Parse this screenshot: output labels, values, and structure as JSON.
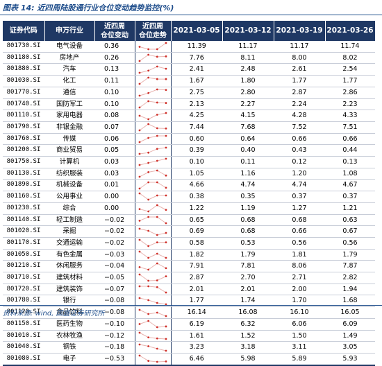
{
  "title": "图表 14: 近四周陆股通行业仓位变动趋势监控(%)",
  "source": "资料来源: wind, 国盛证券研究所",
  "colors": {
    "header_bg": "#1F3864",
    "accent": "#1F4E8C",
    "spark_line": "#E8B4B0",
    "spark_dot": "#D0302A"
  },
  "headers": {
    "code": "证券代码",
    "industry": "申万行业",
    "change": "近四周\n仓位变动",
    "trend": "近四周\n仓位走势",
    "dates": [
      "2021-03-05",
      "2021-03-12",
      "2021-03-19",
      "2021-03-26"
    ]
  },
  "rows": [
    {
      "code": "801730.SI",
      "industry": "电气设备",
      "change": "0.36",
      "values": [
        "11.39",
        "11.17",
        "11.17",
        "11.74"
      ],
      "trend": [
        11.39,
        11.17,
        11.17,
        11.74
      ]
    },
    {
      "code": "801180.SI",
      "industry": "房地产",
      "change": "0.26",
      "values": [
        "7.76",
        "8.11",
        "8.00",
        "8.02"
      ],
      "trend": [
        7.76,
        8.11,
        8.0,
        8.02
      ]
    },
    {
      "code": "801880.SI",
      "industry": "汽车",
      "change": "0.13",
      "values": [
        "2.41",
        "2.48",
        "2.61",
        "2.54"
      ],
      "trend": [
        2.41,
        2.48,
        2.61,
        2.54
      ]
    },
    {
      "code": "801030.SI",
      "industry": "化工",
      "change": "0.11",
      "values": [
        "1.67",
        "1.80",
        "1.77",
        "1.77"
      ],
      "trend": [
        1.67,
        1.8,
        1.77,
        1.77
      ]
    },
    {
      "code": "801770.SI",
      "industry": "通信",
      "change": "0.10",
      "values": [
        "2.75",
        "2.80",
        "2.87",
        "2.86"
      ],
      "trend": [
        2.75,
        2.8,
        2.87,
        2.86
      ]
    },
    {
      "code": "801740.SI",
      "industry": "国防军工",
      "change": "0.10",
      "values": [
        "2.13",
        "2.27",
        "2.24",
        "2.23"
      ],
      "trend": [
        2.13,
        2.27,
        2.24,
        2.23
      ]
    },
    {
      "code": "801110.SI",
      "industry": "家用电器",
      "change": "0.08",
      "values": [
        "4.25",
        "4.15",
        "4.28",
        "4.33"
      ],
      "trend": [
        4.25,
        4.15,
        4.28,
        4.33
      ]
    },
    {
      "code": "801790.SI",
      "industry": "非银金融",
      "change": "0.07",
      "values": [
        "7.44",
        "7.68",
        "7.52",
        "7.51"
      ],
      "trend": [
        7.44,
        7.68,
        7.52,
        7.51
      ]
    },
    {
      "code": "801760.SI",
      "industry": "传媒",
      "change": "0.06",
      "values": [
        "0.60",
        "0.64",
        "0.66",
        "0.66"
      ],
      "trend": [
        0.6,
        0.64,
        0.66,
        0.66
      ]
    },
    {
      "code": "801200.SI",
      "industry": "商业贸易",
      "change": "0.05",
      "values": [
        "0.39",
        "0.40",
        "0.43",
        "0.44"
      ],
      "trend": [
        0.39,
        0.4,
        0.43,
        0.44
      ]
    },
    {
      "code": "801750.SI",
      "industry": "计算机",
      "change": "0.03",
      "values": [
        "0.10",
        "0.11",
        "0.12",
        "0.13"
      ],
      "trend": [
        0.1,
        0.11,
        0.12,
        0.13
      ]
    },
    {
      "code": "801130.SI",
      "industry": "纺织服装",
      "change": "0.03",
      "values": [
        "1.05",
        "1.16",
        "1.20",
        "1.08"
      ],
      "trend": [
        1.05,
        1.16,
        1.2,
        1.08
      ]
    },
    {
      "code": "801890.SI",
      "industry": "机械设备",
      "change": "0.01",
      "values": [
        "4.66",
        "4.74",
        "4.74",
        "4.67"
      ],
      "trend": [
        4.66,
        4.74,
        4.74,
        4.67
      ]
    },
    {
      "code": "801160.SI",
      "industry": "公用事业",
      "change": "0.00",
      "values": [
        "0.38",
        "0.35",
        "0.37",
        "0.37"
      ],
      "trend": [
        0.38,
        0.35,
        0.37,
        0.37
      ]
    },
    {
      "code": "801230.SI",
      "industry": "综合",
      "change": "0.00",
      "values": [
        "1.22",
        "1.19",
        "1.27",
        "1.21"
      ],
      "trend": [
        1.22,
        1.19,
        1.27,
        1.21
      ]
    },
    {
      "code": "801140.SI",
      "industry": "轻工制造",
      "change": "−0.02",
      "values": [
        "0.65",
        "0.68",
        "0.68",
        "0.63"
      ],
      "trend": [
        0.65,
        0.68,
        0.68,
        0.63
      ]
    },
    {
      "code": "801020.SI",
      "industry": "采掘",
      "change": "−0.02",
      "values": [
        "0.69",
        "0.68",
        "0.66",
        "0.67"
      ],
      "trend": [
        0.69,
        0.68,
        0.66,
        0.67
      ]
    },
    {
      "code": "801170.SI",
      "industry": "交通运输",
      "change": "−0.02",
      "values": [
        "0.58",
        "0.53",
        "0.56",
        "0.56"
      ],
      "trend": [
        0.58,
        0.53,
        0.56,
        0.56
      ]
    },
    {
      "code": "801050.SI",
      "industry": "有色金属",
      "change": "−0.03",
      "values": [
        "1.82",
        "1.79",
        "1.81",
        "1.79"
      ],
      "trend": [
        1.82,
        1.79,
        1.81,
        1.79
      ]
    },
    {
      "code": "801210.SI",
      "industry": "休闲服务",
      "change": "−0.04",
      "values": [
        "7.91",
        "7.81",
        "8.06",
        "7.87"
      ],
      "trend": [
        7.91,
        7.81,
        8.06,
        7.87
      ]
    },
    {
      "code": "801710.SI",
      "industry": "建筑材料",
      "change": "−0.05",
      "values": [
        "2.87",
        "2.70",
        "2.71",
        "2.82"
      ],
      "trend": [
        2.87,
        2.7,
        2.71,
        2.82
      ]
    },
    {
      "code": "801720.SI",
      "industry": "建筑装饰",
      "change": "−0.07",
      "values": [
        "2.01",
        "2.01",
        "2.00",
        "1.94"
      ],
      "trend": [
        2.01,
        2.01,
        2.0,
        1.94
      ]
    },
    {
      "code": "801780.SI",
      "industry": "银行",
      "change": "−0.08",
      "values": [
        "1.77",
        "1.74",
        "1.70",
        "1.68"
      ],
      "trend": [
        1.77,
        1.74,
        1.7,
        1.68
      ]
    },
    {
      "code": "801120.SI",
      "industry": "食品饮料",
      "change": "−0.08",
      "values": [
        "16.14",
        "16.08",
        "16.10",
        "16.05"
      ],
      "trend": [
        16.14,
        16.08,
        16.1,
        16.05
      ]
    },
    {
      "code": "801150.SI",
      "industry": "医药生物",
      "change": "−0.10",
      "values": [
        "6.19",
        "6.32",
        "6.06",
        "6.09"
      ],
      "trend": [
        6.19,
        6.32,
        6.06,
        6.09
      ]
    },
    {
      "code": "801010.SI",
      "industry": "农林牧渔",
      "change": "−0.12",
      "values": [
        "1.61",
        "1.52",
        "1.50",
        "1.49"
      ],
      "trend": [
        1.61,
        1.52,
        1.5,
        1.49
      ]
    },
    {
      "code": "801040.SI",
      "industry": "钢铁",
      "change": "−0.18",
      "values": [
        "3.23",
        "3.18",
        "3.11",
        "3.05"
      ],
      "trend": [
        3.23,
        3.18,
        3.11,
        3.05
      ]
    },
    {
      "code": "801080.SI",
      "industry": "电子",
      "change": "−0.53",
      "values": [
        "6.46",
        "5.98",
        "5.89",
        "5.93"
      ],
      "trend": [
        6.46,
        5.98,
        5.89,
        5.93
      ]
    }
  ]
}
